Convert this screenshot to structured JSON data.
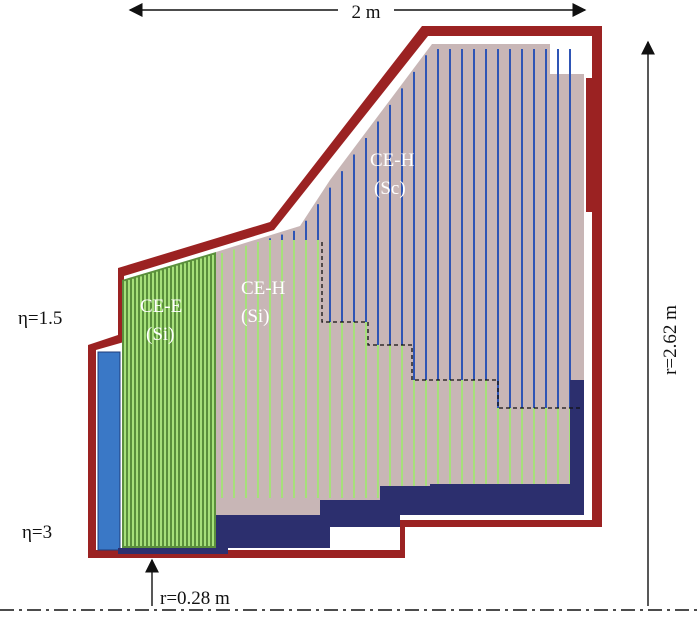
{
  "colors": {
    "outer_shell": "#9b2222",
    "inner_shell": "#ffffff",
    "ce_e_region": "#5a8f3c",
    "si_layer": "#a6e07a",
    "ce_h_region": "#c8b6b6",
    "sc_layer": "#2f55b5",
    "support_base": "#2c2f6e",
    "moderator": "#3a78c6",
    "arrow": "#111111"
  },
  "dimensions": {
    "width_label": "2 m",
    "height_label": "r=2.62 m",
    "inner_radius_label": "r=0.28 m"
  },
  "eta": {
    "upper": "η=1.5",
    "lower": "η=3"
  },
  "sections": {
    "ce_e": {
      "line1": "CE-E",
      "line2": "(Si)"
    },
    "ce_h_si": {
      "line1": "CE-H",
      "line2": "(Si)"
    },
    "ce_h_sc": {
      "line1": "CE-H",
      "line2": "(Sc)"
    }
  },
  "icons": {
    "width_arrow": "double-arrow-horizontal",
    "height_arrow": "arrow-up",
    "radius_arrow": "arrow-up",
    "beam_axis": "dash-dot-line"
  }
}
